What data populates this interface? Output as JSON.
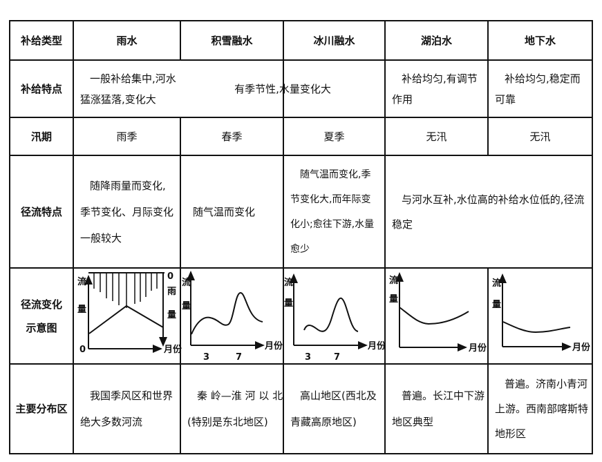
{
  "header": {
    "row_label": "补给类型",
    "types": [
      "雨水",
      "积雪融水",
      "冰川融水",
      "湖泊水",
      "地下水"
    ]
  },
  "features": {
    "label": "补给特点",
    "rain": [
      "一般补给集中,河水",
      "猛涨猛落,变化大"
    ],
    "snow_glacier": "有季节性,水量变化大",
    "lake": [
      "补给均匀,有调节",
      "作用"
    ],
    "ground": [
      "补给均匀,稳定而",
      "可靠"
    ]
  },
  "flood": {
    "label": "汛期",
    "values": [
      "雨季",
      "春季",
      "夏季",
      "无汛",
      "无汛"
    ]
  },
  "runoff": {
    "label": "径流特点",
    "rain": [
      "随降雨量而变化,",
      "季节变化、月际变化",
      "一般较大"
    ],
    "snow": "随气温而变化",
    "glacier": [
      "随气温而变化,季",
      "节变化大,而年际变",
      "化小;愈往下游,水量",
      "愈少"
    ],
    "lake_ground": [
      "与河水互补,水位高的补给水位低的,径流",
      "稳定"
    ]
  },
  "diagram": {
    "label": [
      "径流变化",
      "示意图"
    ],
    "flow": [
      "流",
      "量"
    ],
    "rain_amount": [
      "雨",
      "量"
    ],
    "zero": "0",
    "month": "月份",
    "ticks": [
      "3",
      "7"
    ]
  },
  "distribution": {
    "label": "主要分布区",
    "rain": [
      "我国季风区和世界",
      "绝大多数河流"
    ],
    "snow": [
      "秦 岭—淮 河 以 北",
      "(特别是东北地区)"
    ],
    "glacier": [
      "高山地区(西北及",
      "青藏高原地区)"
    ],
    "lake": [
      "普遍。长江中下游",
      "地区典型"
    ],
    "ground": [
      "普遍。济南小青河",
      "上游。西南部喀斯特",
      "地形区"
    ]
  }
}
